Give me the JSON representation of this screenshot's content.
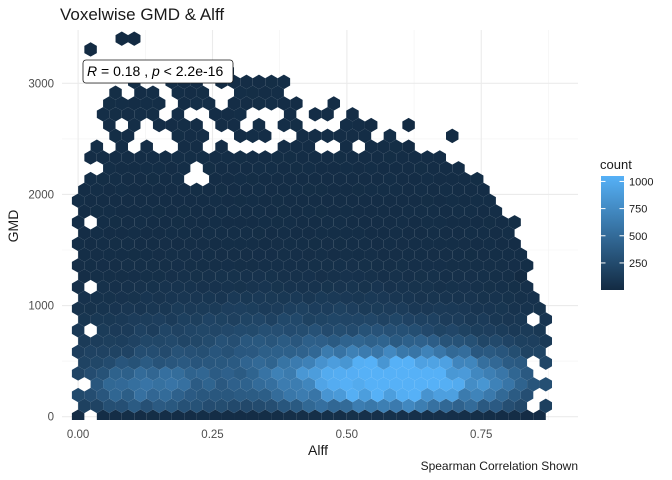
{
  "chart_data": {
    "type": "hexbin",
    "title": "Voxelwise GMD & Alff",
    "xlabel": "Alff",
    "ylabel": "GMD",
    "caption": "Spearman Correlation Shown",
    "annotation": {
      "r_label": "R",
      "r_value": " = 0.18 , ",
      "p_label": "p",
      "p_value": " < 2.2e-16"
    },
    "xlim": [
      -0.03,
      0.93
    ],
    "ylim": [
      -30,
      3480
    ],
    "x_ticks": [
      0.0,
      0.25,
      0.5,
      0.75
    ],
    "x_tick_labels": [
      "0.00",
      "0.25",
      "0.50",
      "0.75"
    ],
    "y_ticks": [
      0,
      1000,
      2000,
      3000
    ],
    "y_tick_labels": [
      "0",
      "1000",
      "2000",
      "3000"
    ],
    "grid": true,
    "legend": {
      "title": "count",
      "position": "right",
      "range": [
        1,
        1050
      ],
      "breaks": [
        250,
        500,
        750,
        1000
      ],
      "labels": [
        "250",
        "500",
        "750",
        "1000"
      ],
      "colors": [
        "#132b43",
        "#56b1f7"
      ]
    },
    "density_model": {
      "x_range_by_y": [
        [
          0,
          0.0,
          0.875
        ],
        [
          400,
          0.0,
          0.875
        ],
        [
          800,
          0.0,
          0.88
        ],
        [
          1100,
          0.0,
          0.85
        ],
        [
          1400,
          0.0,
          0.84
        ],
        [
          1700,
          0.0,
          0.82
        ],
        [
          2000,
          0.0,
          0.78
        ],
        [
          2200,
          0.02,
          0.74
        ],
        [
          2500,
          0.02,
          0.6
        ],
        [
          2900,
          0.06,
          0.45
        ],
        [
          3100,
          0.1,
          0.35
        ]
      ],
      "peak": {
        "x": 0.6,
        "y": 320,
        "count": 1050
      },
      "secondary_peak": {
        "x": 0.12,
        "y": 260,
        "count": 380
      }
    },
    "isolated_bins": [
      {
        "x": 0.02,
        "y": 3330
      },
      {
        "x": 0.09,
        "y": 3420
      },
      {
        "x": 0.28,
        "y": 3050
      },
      {
        "x": 0.44,
        "y": 2250
      },
      {
        "x": 0.34,
        "y": 2120
      },
      {
        "x": 0.46,
        "y": 1980
      },
      {
        "x": 0.55,
        "y": 2620
      },
      {
        "x": 0.62,
        "y": 2600
      },
      {
        "x": 0.62,
        "y": 2400
      },
      {
        "x": 0.7,
        "y": 2500
      },
      {
        "x": 0.8,
        "y": 1700
      },
      {
        "x": 0.82,
        "y": 1500
      },
      {
        "x": 0.82,
        "y": 1300
      }
    ],
    "holes": [
      {
        "x": 0.32,
        "y": 2660
      },
      {
        "x": 0.22,
        "y": 2160
      },
      {
        "x": 0.16,
        "y": 2460
      }
    ]
  }
}
